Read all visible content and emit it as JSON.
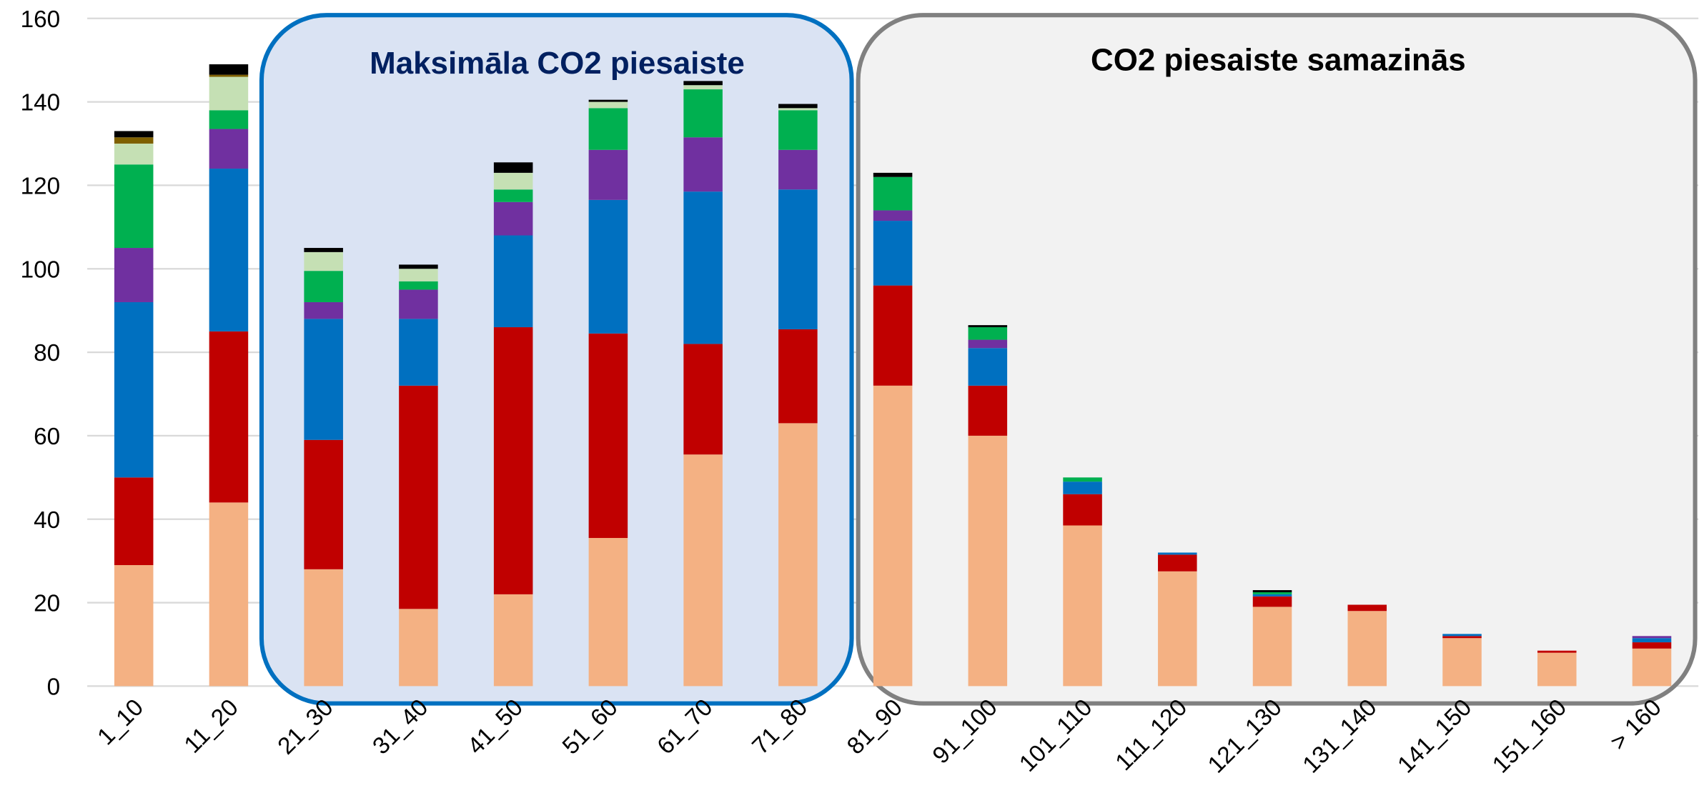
{
  "chart_data": {
    "type": "stacked_bar",
    "categories": [
      "1_10",
      "11_20",
      "21_30",
      "31_40",
      "41_50",
      "51_60",
      "61_70",
      "71_80",
      "81_90",
      "91_100",
      "101_110",
      "111_120",
      "121_130",
      "131_140",
      "141_150",
      "151_160",
      "> 160"
    ],
    "series": [
      {
        "color": "#f4b183",
        "values": [
          29,
          44,
          28,
          18.5,
          22,
          35.5,
          55.5,
          63,
          72,
          60,
          38.5,
          27.5,
          19,
          18,
          11.5,
          8,
          9
        ]
      },
      {
        "color": "#c00000",
        "values": [
          21,
          41,
          31,
          53.5,
          64,
          49,
          26.5,
          22.5,
          24,
          12,
          7.5,
          4,
          2.5,
          1.5,
          0.5,
          0.5,
          1.5
        ]
      },
      {
        "color": "#0070c0",
        "values": [
          42,
          39,
          29,
          16,
          22,
          32,
          36.5,
          33.5,
          15.5,
          9,
          3,
          0.5,
          0.5,
          0,
          0.5,
          0,
          1
        ]
      },
      {
        "color": "#7030a0",
        "values": [
          13,
          9.5,
          4,
          7,
          8,
          12,
          13,
          9.5,
          2.5,
          2,
          0,
          0,
          0,
          0,
          0,
          0,
          0.5
        ]
      },
      {
        "color": "#00b050",
        "values": [
          20,
          4.5,
          7.5,
          2,
          3,
          10,
          11.5,
          9.5,
          8,
          3,
          1,
          0,
          0.5,
          0,
          0,
          0,
          0
        ]
      },
      {
        "color": "#c5e0b4",
        "values": [
          5,
          8,
          4.5,
          3,
          4,
          1.5,
          1,
          0.5,
          0,
          0,
          0,
          0,
          0,
          0,
          0,
          0,
          0
        ]
      },
      {
        "color": "#7f6000",
        "values": [
          1.5,
          0.5,
          0,
          0,
          0,
          0,
          0,
          0,
          0,
          0,
          0,
          0,
          0,
          0,
          0,
          0,
          0
        ]
      },
      {
        "color": "#000000",
        "values": [
          1.5,
          2.5,
          1,
          1,
          2.5,
          0.5,
          1,
          1,
          1,
          0.5,
          0,
          0,
          0.5,
          0,
          0,
          0,
          0
        ]
      }
    ],
    "annotations": [
      "Maksimāla CO2 piesaiste",
      "CO2 piesaiste samazinās"
    ],
    "ylim": [
      0,
      160
    ],
    "yticks": [
      0,
      20,
      40,
      60,
      80,
      100,
      120,
      140,
      160
    ],
    "grid": true
  }
}
